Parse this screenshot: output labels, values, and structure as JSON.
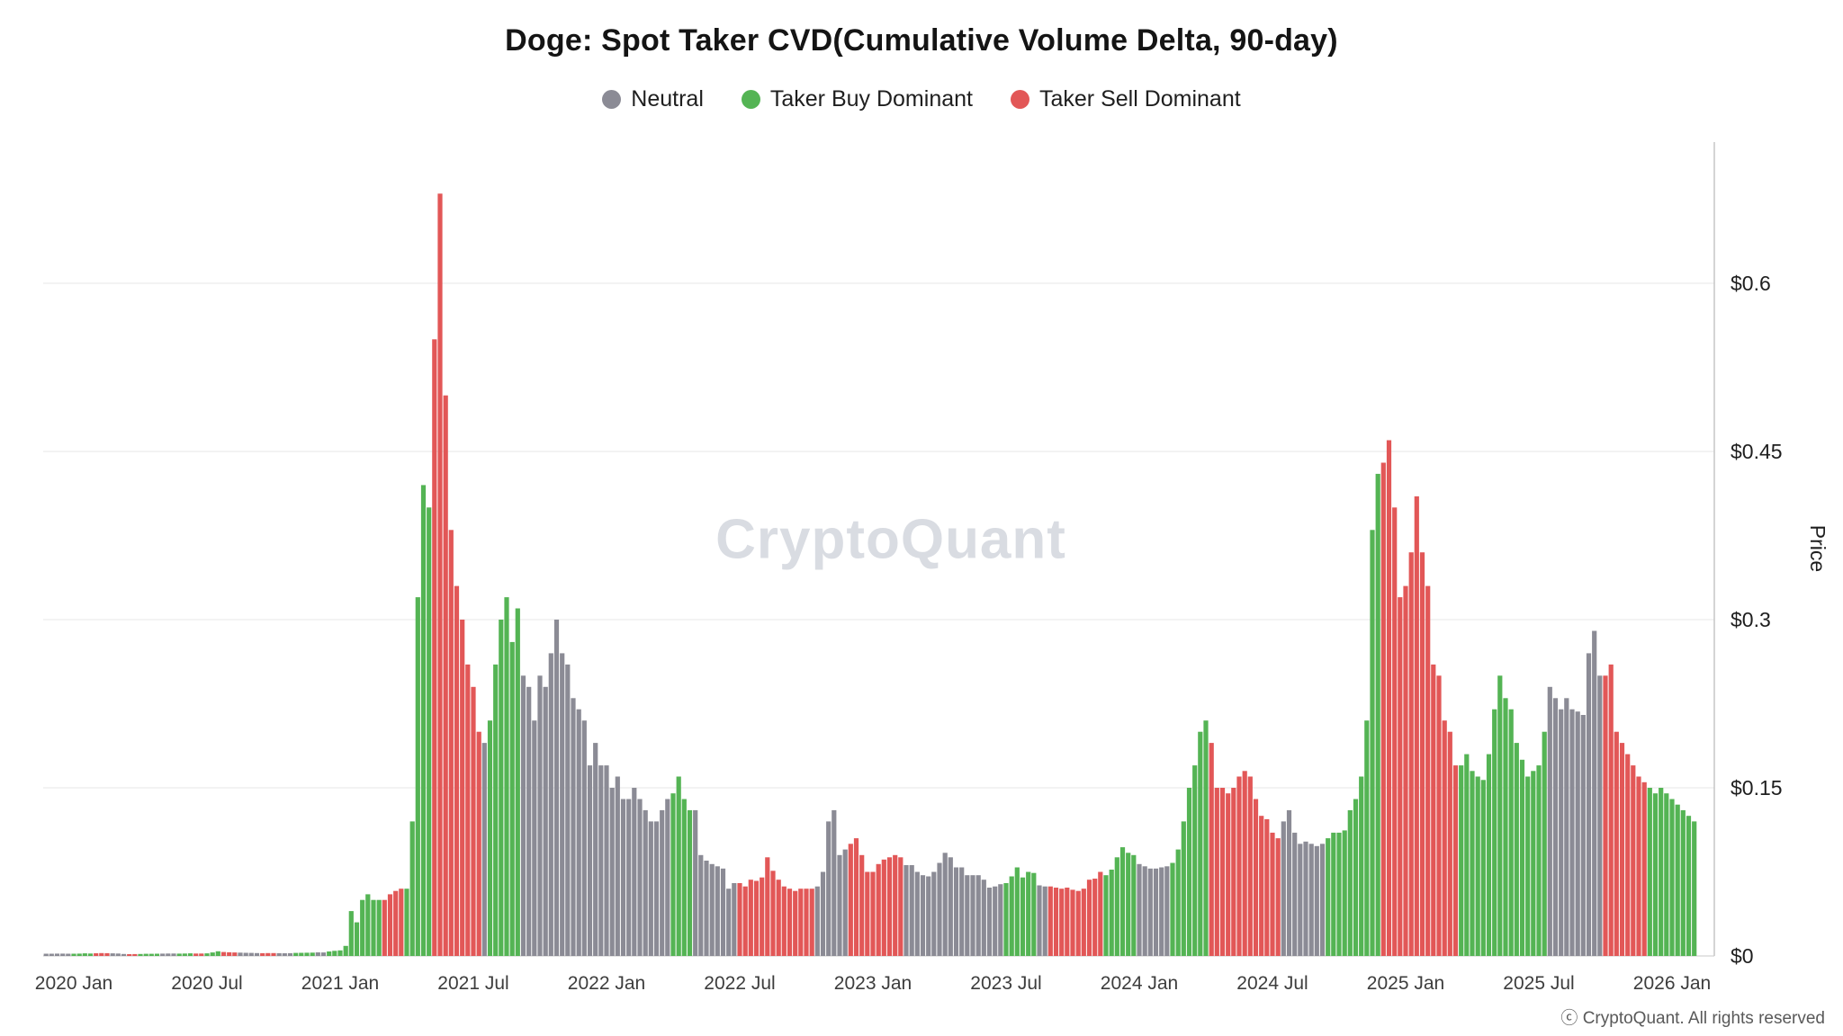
{
  "title": "Doge: Spot Taker CVD(Cumulative Volume Delta, 90-day)",
  "watermark": "CryptoQuant",
  "copyright": "ⓒ CryptoQuant. All rights reserved",
  "legend": [
    {
      "label": "Neutral",
      "color": "#8b8b95",
      "key": "n"
    },
    {
      "label": "Taker Buy Dominant",
      "color": "#54b454",
      "key": "b"
    },
    {
      "label": "Taker Sell Dominant",
      "color": "#e25757",
      "key": "s"
    }
  ],
  "chart_data": {
    "type": "bar",
    "title": "Doge: Spot Taker CVD(Cumulative Volume Delta, 90-day)",
    "xlabel": "",
    "ylabel": "Price",
    "ylim": [
      0,
      0.72
    ],
    "grid": true,
    "legend_position": "top",
    "y_tick_values": [
      0,
      0.15,
      0.3,
      0.45,
      0.6
    ],
    "y_tick_labels": [
      "$0",
      "$0.15",
      "$0.3",
      "$0.45",
      "$0.6"
    ],
    "x_tick_labels": [
      "2020 Jan",
      "2020 Jul",
      "2021 Jan",
      "2021 Jul",
      "2022 Jan",
      "2022 Jul",
      "2023 Jan",
      "2023 Jul",
      "2024 Jan",
      "2024 Jul",
      "2025 Jan",
      "2025 Jul",
      "2026 Jan"
    ],
    "x_tick_years": [
      2020.0,
      2020.5,
      2021.0,
      2021.5,
      2022.0,
      2022.5,
      2023.0,
      2023.5,
      2024.0,
      2024.5,
      2025.0,
      2025.5,
      2026.0
    ],
    "x_start": 2019.8958333,
    "x_step_years": 0.0208333,
    "status_colors": {
      "n": "#8b8b95",
      "b": "#54b454",
      "s": "#e25757"
    },
    "status_names": {
      "n": "Neutral",
      "b": "Taker Buy Dominant",
      "s": "Taker Sell Dominant"
    },
    "segments": [
      {
        "status": "n",
        "prices": [
          0.002,
          0.002,
          0.0021,
          0.0021,
          0.002
        ]
      },
      {
        "status": "b",
        "prices": [
          0.002,
          0.0021,
          0.0023,
          0.0022
        ]
      },
      {
        "status": "s",
        "prices": [
          0.0024,
          0.0026,
          0.0025
        ]
      },
      {
        "status": "n",
        "prices": [
          0.0023,
          0.0022,
          0.0018
        ]
      },
      {
        "status": "s",
        "prices": [
          0.0016,
          0.0017
        ]
      },
      {
        "status": "b",
        "prices": [
          0.0018,
          0.0019,
          0.0019,
          0.002
        ]
      },
      {
        "status": "n",
        "prices": [
          0.0021,
          0.0022,
          0.0022
        ]
      },
      {
        "status": "b",
        "prices": [
          0.0021,
          0.0022,
          0.0023
        ]
      },
      {
        "status": "s",
        "prices": [
          0.0022,
          0.0022
        ]
      },
      {
        "status": "b",
        "prices": [
          0.0023,
          0.0031,
          0.0042
        ]
      },
      {
        "status": "s",
        "prices": [
          0.0035,
          0.0033,
          0.0031
        ]
      },
      {
        "status": "n",
        "prices": [
          0.003,
          0.0028,
          0.0027,
          0.0026
        ]
      },
      {
        "status": "s",
        "prices": [
          0.0025,
          0.0026,
          0.0026
        ]
      },
      {
        "status": "n",
        "prices": [
          0.0025,
          0.0024,
          0.0025
        ]
      },
      {
        "status": "b",
        "prices": [
          0.0027,
          0.0028,
          0.0029,
          0.003
        ]
      },
      {
        "status": "n",
        "prices": [
          0.0032,
          0.0031
        ]
      },
      {
        "status": "b",
        "prices": [
          0.004,
          0.0046
        ]
      },
      {
        "status": "b",
        "prices": [
          0.005,
          0.009,
          0.04,
          0.03,
          0.05,
          0.055,
          0.05,
          0.05
        ]
      },
      {
        "status": "s",
        "prices": [
          0.05,
          0.055,
          0.058,
          0.06
        ]
      },
      {
        "status": "b",
        "prices": [
          0.06,
          0.12,
          0.32,
          0.42,
          0.4
        ]
      },
      {
        "status": "s",
        "prices": [
          0.55,
          0.68,
          0.5,
          0.38,
          0.33,
          0.3,
          0.26,
          0.24,
          0.2
        ]
      },
      {
        "status": "n",
        "prices": [
          0.19
        ]
      },
      {
        "status": "b",
        "prices": [
          0.21,
          0.26,
          0.3,
          0.32,
          0.28,
          0.31
        ]
      },
      {
        "status": "n",
        "prices": [
          0.25,
          0.24,
          0.21,
          0.25,
          0.24,
          0.27,
          0.3,
          0.27,
          0.26,
          0.23,
          0.22,
          0.21,
          0.17,
          0.19,
          0.17
        ]
      },
      {
        "status": "n",
        "prices": [
          0.17,
          0.15,
          0.16,
          0.14,
          0.14,
          0.15,
          0.14,
          0.13,
          0.12,
          0.12,
          0.13,
          0.14
        ]
      },
      {
        "status": "b",
        "prices": [
          0.145,
          0.16,
          0.14,
          0.13
        ]
      },
      {
        "status": "n",
        "prices": [
          0.13,
          0.09,
          0.085,
          0.082,
          0.08,
          0.078,
          0.06,
          0.065
        ]
      },
      {
        "status": "s",
        "prices": [
          0.065,
          0.062,
          0.068,
          0.067,
          0.07,
          0.088,
          0.076,
          0.068,
          0.062,
          0.06,
          0.058,
          0.06,
          0.06,
          0.06
        ]
      },
      {
        "status": "n",
        "prices": [
          0.062,
          0.075,
          0.12,
          0.13,
          0.09,
          0.095
        ]
      },
      {
        "status": "s",
        "prices": [
          0.1,
          0.105,
          0.09,
          0.075
        ]
      },
      {
        "status": "s",
        "prices": [
          0.075,
          0.082,
          0.086,
          0.088,
          0.09,
          0.088
        ]
      },
      {
        "status": "n",
        "prices": [
          0.081,
          0.081,
          0.075,
          0.072,
          0.071,
          0.075,
          0.083,
          0.092,
          0.088,
          0.079,
          0.079,
          0.072,
          0.072,
          0.072,
          0.068,
          0.061,
          0.062,
          0.064
        ]
      },
      {
        "status": "b",
        "prices": [
          0.065,
          0.071,
          0.079,
          0.07,
          0.075,
          0.074
        ]
      },
      {
        "status": "n",
        "prices": [
          0.063,
          0.062
        ]
      },
      {
        "status": "s",
        "prices": [
          0.062,
          0.061,
          0.06,
          0.061,
          0.059,
          0.058,
          0.06,
          0.068,
          0.069,
          0.075
        ]
      },
      {
        "status": "b",
        "prices": [
          0.072,
          0.077,
          0.088,
          0.097,
          0.092,
          0.09
        ]
      },
      {
        "status": "n",
        "prices": [
          0.082,
          0.08,
          0.078,
          0.078,
          0.079,
          0.08
        ]
      },
      {
        "status": "b",
        "prices": [
          0.083,
          0.095,
          0.12,
          0.15,
          0.17,
          0.2,
          0.21
        ]
      },
      {
        "status": "s",
        "prices": [
          0.19,
          0.15,
          0.15,
          0.145,
          0.15,
          0.16,
          0.165,
          0.16,
          0.14,
          0.125,
          0.122,
          0.11,
          0.105
        ]
      },
      {
        "status": "n",
        "prices": [
          0.12,
          0.13,
          0.11,
          0.1,
          0.102,
          0.1,
          0.098,
          0.1
        ]
      },
      {
        "status": "b",
        "prices": [
          0.105,
          0.11,
          0.11,
          0.112,
          0.13,
          0.14,
          0.16,
          0.21,
          0.38,
          0.43
        ]
      },
      {
        "status": "s",
        "prices": [
          0.44,
          0.46,
          0.4,
          0.32
        ]
      },
      {
        "status": "s",
        "prices": [
          0.33,
          0.36,
          0.41,
          0.36,
          0.33,
          0.26,
          0.25,
          0.21,
          0.2,
          0.17
        ]
      },
      {
        "status": "b",
        "prices": [
          0.17,
          0.18,
          0.165,
          0.16,
          0.157,
          0.18,
          0.22,
          0.25,
          0.23,
          0.22,
          0.19,
          0.175,
          0.16,
          0.165,
          0.17,
          0.2
        ]
      },
      {
        "status": "n",
        "prices": [
          0.24,
          0.23,
          0.22,
          0.23,
          0.22,
          0.218,
          0.215,
          0.27,
          0.29,
          0.25
        ]
      },
      {
        "status": "s",
        "prices": [
          0.25,
          0.26,
          0.2,
          0.19,
          0.18,
          0.17,
          0.16,
          0.155
        ]
      },
      {
        "status": "b",
        "prices": [
          0.15,
          0.145,
          0.15,
          0.145
        ]
      },
      {
        "status": "b",
        "prices": [
          0.14,
          0.135,
          0.13,
          0.125,
          0.12
        ]
      }
    ]
  }
}
